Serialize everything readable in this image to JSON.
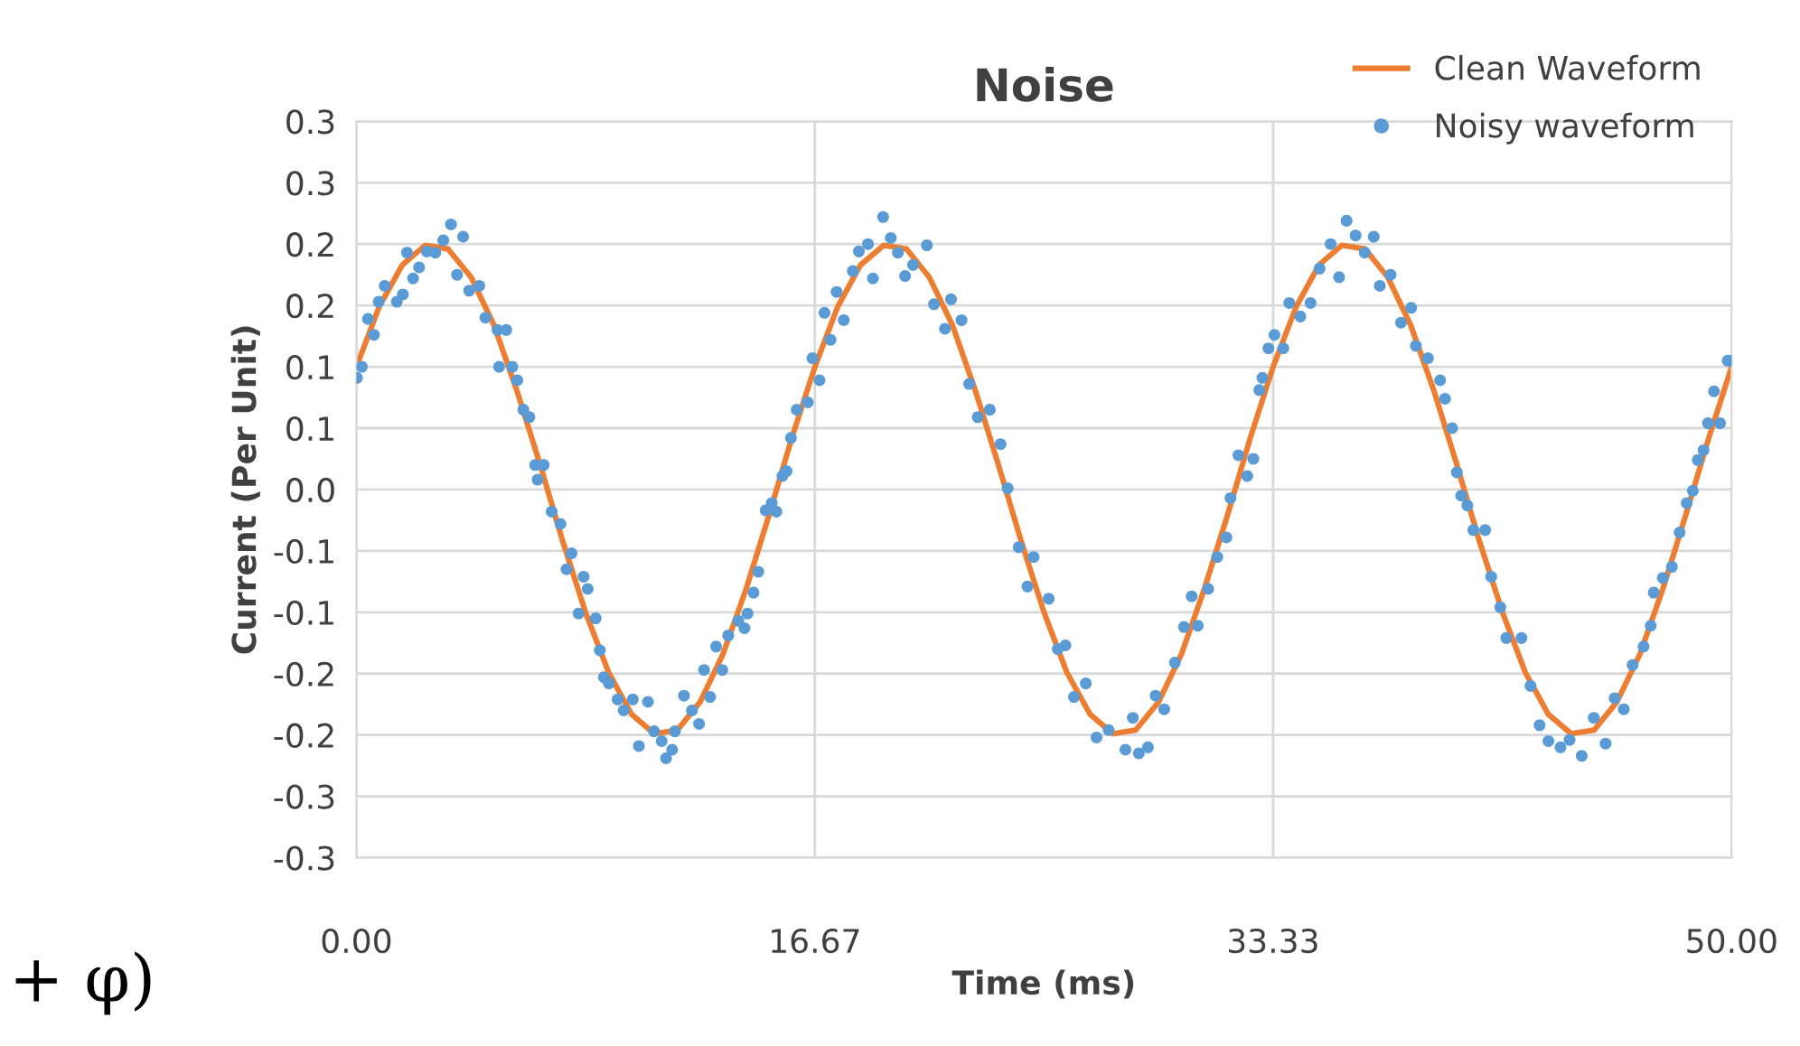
{
  "chart_data": {
    "type": "line",
    "title": "Noise",
    "xlabel": "Time (ms)",
    "ylabel": "Current (Per Unit)",
    "annotations": [
      "+ φ)"
    ],
    "xlim": [
      0,
      50
    ],
    "xticks": [
      {
        "value": 0,
        "label": "0.00"
      },
      {
        "value": 16.67,
        "label": "16.67"
      },
      {
        "value": 33.33,
        "label": "33.33"
      },
      {
        "value": 50,
        "label": "50.00"
      }
    ],
    "ylim": [
      -0.3,
      0.3
    ],
    "yticks": [
      {
        "value": -0.3,
        "label": "-0.3"
      },
      {
        "value": -0.25,
        "label": "-0.3"
      },
      {
        "value": -0.2,
        "label": "-0.2"
      },
      {
        "value": -0.15,
        "label": "-0.2"
      },
      {
        "value": -0.1,
        "label": "-0.1"
      },
      {
        "value": -0.05,
        "label": "-0.1"
      },
      {
        "value": 0,
        "label": "0.0"
      },
      {
        "value": 0.05,
        "label": "0.1"
      },
      {
        "value": 0.1,
        "label": "0.1"
      },
      {
        "value": 0.15,
        "label": "0.2"
      },
      {
        "value": 0.2,
        "label": "0.2"
      },
      {
        "value": 0.25,
        "label": "0.3"
      },
      {
        "value": 0.3,
        "label": "0.3"
      }
    ],
    "grid": true,
    "legend": "top right",
    "series": [
      {
        "name": "Clean Waveform",
        "color": "#ed7d31",
        "marker": "none",
        "line_style": "solid",
        "x": [
          0,
          0.83,
          1.67,
          2.5,
          3.33,
          4.17,
          5,
          5.83,
          6.67,
          7.5,
          8.33,
          9.17,
          10,
          10.83,
          11.67,
          12.5,
          13.33,
          14.17,
          15,
          15.83,
          16.67,
          17.5,
          18.33,
          19.17,
          20,
          20.83,
          21.67,
          22.5,
          23.33,
          24.17,
          25,
          25.83,
          26.67,
          27.5,
          28.33,
          29.17,
          30,
          30.83,
          31.67,
          32.5,
          33.33,
          34.17,
          35,
          35.83,
          36.67,
          37.5,
          38.33,
          39.17,
          40,
          40.83,
          41.67,
          42.5,
          43.33,
          44.17,
          45,
          45.83,
          46.67,
          47.5,
          48.33,
          49.17,
          50
        ],
        "values": [
          0.1,
          0.149,
          0.183,
          0.199,
          0.196,
          0.173,
          0.134,
          0.081,
          0.021,
          -0.042,
          -0.1,
          -0.149,
          -0.183,
          -0.199,
          -0.196,
          -0.173,
          -0.134,
          -0.081,
          -0.021,
          0.042,
          0.1,
          0.149,
          0.183,
          0.199,
          0.196,
          0.173,
          0.134,
          0.081,
          0.021,
          -0.042,
          -0.1,
          -0.149,
          -0.183,
          -0.199,
          -0.196,
          -0.173,
          -0.134,
          -0.081,
          -0.021,
          0.042,
          0.1,
          0.149,
          0.183,
          0.199,
          0.196,
          0.173,
          0.134,
          0.081,
          0.021,
          -0.042,
          -0.1,
          -0.149,
          -0.183,
          -0.199,
          -0.196,
          -0.173,
          -0.134,
          -0.081,
          -0.021,
          0.042,
          0.1
        ]
      },
      {
        "name": "Noisy waveform",
        "type": "scatter",
        "color": "#5b9bd5",
        "marker": "circle",
        "x": [
          0.02,
          0.2,
          0.42,
          0.64,
          0.81,
          1.03,
          1.47,
          1.69,
          1.84,
          2.06,
          2.28,
          2.56,
          2.87,
          3.16,
          3.44,
          3.66,
          3.88,
          4.1,
          4.47,
          4.69,
          5.13,
          5.19,
          5.45,
          5.67,
          5.85,
          6.07,
          6.29,
          6.5,
          6.59,
          6.81,
          7.1,
          7.42,
          7.64,
          7.82,
          8.08,
          8.26,
          8.41,
          8.7,
          8.85,
          9.0,
          9.18,
          9.5,
          9.72,
          10.05,
          10.27,
          10.6,
          10.82,
          11.1,
          11.26,
          11.48,
          11.58,
          11.91,
          12.2,
          12.46,
          12.64,
          12.86,
          13.08,
          13.3,
          13.52,
          13.89,
          14.11,
          14.22,
          14.44,
          14.61,
          14.88,
          15.1,
          15.27,
          15.49,
          15.64,
          15.8,
          16.01,
          16.41,
          16.58,
          16.84,
          17.02,
          17.24,
          17.46,
          17.72,
          18.05,
          18.27,
          18.6,
          18.78,
          19.15,
          19.43,
          19.69,
          19.95,
          20.24,
          20.74,
          21.0,
          21.4,
          21.62,
          22.0,
          22.28,
          22.59,
          23.03,
          23.42,
          23.68,
          24.08,
          24.4,
          24.62,
          25.17,
          25.5,
          25.78,
          26.09,
          26.52,
          26.91,
          27.35,
          27.96,
          28.23,
          28.45,
          28.78,
          29.06,
          29.37,
          29.76,
          30.09,
          30.37,
          30.59,
          30.97,
          31.3,
          31.63,
          31.78,
          32.07,
          32.39,
          32.61,
          32.83,
          32.94,
          33.16,
          33.38,
          33.7,
          33.92,
          34.32,
          34.69,
          35.02,
          35.42,
          35.73,
          36.0,
          36.33,
          36.66,
          36.99,
          37.21,
          37.6,
          37.98,
          38.35,
          38.52,
          38.96,
          39.4,
          39.58,
          39.84,
          40.01,
          40.17,
          40.39,
          40.61,
          41.04,
          41.26,
          41.59,
          41.81,
          42.36,
          42.69,
          43.02,
          43.34,
          43.78,
          44.11,
          44.55,
          44.99,
          45.42,
          45.75,
          46.08,
          46.4,
          46.8,
          47.06,
          47.17,
          47.5,
          47.83,
          48.11,
          48.37,
          48.59,
          48.77,
          48.98,
          49.14,
          49.36,
          49.58,
          49.86,
          50.0
        ],
        "values": [
          0.091,
          0.1,
          0.139,
          0.126,
          0.153,
          0.166,
          0.153,
          0.159,
          0.193,
          0.172,
          0.181,
          0.194,
          0.193,
          0.203,
          0.216,
          0.175,
          0.206,
          0.162,
          0.166,
          0.14,
          0.13,
          0.1,
          0.13,
          0.1,
          0.089,
          0.065,
          0.059,
          0.02,
          0.008,
          0.02,
          -0.018,
          -0.028,
          -0.065,
          -0.052,
          -0.101,
          -0.071,
          -0.081,
          -0.105,
          -0.131,
          -0.153,
          -0.158,
          -0.171,
          -0.18,
          -0.171,
          -0.209,
          -0.173,
          -0.197,
          -0.205,
          -0.219,
          -0.212,
          -0.197,
          -0.168,
          -0.18,
          -0.191,
          -0.147,
          -0.169,
          -0.128,
          -0.147,
          -0.119,
          -0.107,
          -0.113,
          -0.101,
          -0.084,
          -0.067,
          -0.017,
          -0.011,
          -0.018,
          0.011,
          0.015,
          0.042,
          0.065,
          0.071,
          0.107,
          0.089,
          0.144,
          0.122,
          0.161,
          0.138,
          0.178,
          0.194,
          0.2,
          0.172,
          0.222,
          0.205,
          0.193,
          0.174,
          0.183,
          0.199,
          0.151,
          0.131,
          0.155,
          0.138,
          0.086,
          0.059,
          0.065,
          0.037,
          0.001,
          -0.047,
          -0.079,
          -0.055,
          -0.089,
          -0.13,
          -0.127,
          -0.169,
          -0.158,
          -0.202,
          -0.196,
          -0.212,
          -0.186,
          -0.215,
          -0.21,
          -0.168,
          -0.179,
          -0.141,
          -0.112,
          -0.087,
          -0.111,
          -0.081,
          -0.055,
          -0.039,
          -0.007,
          0.028,
          0.011,
          0.025,
          0.081,
          0.091,
          0.115,
          0.126,
          0.115,
          0.152,
          0.141,
          0.152,
          0.18,
          0.2,
          0.173,
          0.219,
          0.207,
          0.193,
          0.206,
          0.166,
          0.175,
          0.136,
          0.148,
          0.117,
          0.107,
          0.089,
          0.074,
          0.05,
          0.014,
          -0.005,
          -0.013,
          -0.033,
          -0.033,
          -0.071,
          -0.096,
          -0.121,
          -0.121,
          -0.16,
          -0.192,
          -0.205,
          -0.21,
          -0.204,
          -0.217,
          -0.186,
          -0.207,
          -0.17,
          -0.179,
          -0.143,
          -0.128,
          -0.111,
          -0.084,
          -0.072,
          -0.063,
          -0.035,
          -0.011,
          -0.001,
          0.024,
          0.032,
          0.054,
          0.08,
          0.054,
          0.105,
          0.105
        ]
      }
    ]
  }
}
